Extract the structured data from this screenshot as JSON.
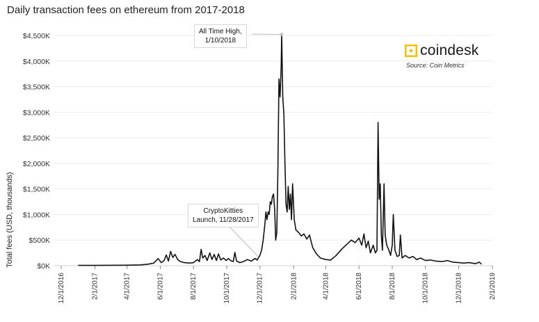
{
  "chart_data": {
    "type": "line",
    "title": "Daily transaction fees on ethereum from 2017-2018",
    "xlabel": "",
    "ylabel": "Total fees (USD, thousands)",
    "ylim": [
      0,
      4500
    ],
    "xlim": [
      "2016-12-01",
      "2019-02-01"
    ],
    "grid": "horizontal",
    "yticks": [
      0,
      500,
      1000,
      1500,
      2000,
      2500,
      3000,
      3500,
      4000,
      4500
    ],
    "ytick_labels": [
      "$0K",
      "$500K",
      "$1,000K",
      "$1,500K",
      "$2,000K",
      "$2,500K",
      "$3,000K",
      "$3,500K",
      "$4,000K",
      "$4,500K"
    ],
    "xtick_labels": [
      "12/1/2016",
      "2/1/2017",
      "4/1/2017",
      "6/1/2017",
      "8/1/2017",
      "10/1/2017",
      "12/1/2017",
      "2/1/2018",
      "4/1/2018",
      "6/1/2018",
      "8/1/2018",
      "10/1/2018",
      "12/1/2018",
      "2/1/2019"
    ],
    "xtick_dates": [
      "2016-12-01",
      "2017-02-01",
      "2017-04-01",
      "2017-06-01",
      "2017-08-01",
      "2017-10-01",
      "2017-12-01",
      "2018-02-01",
      "2018-04-01",
      "2018-06-01",
      "2018-08-01",
      "2018-10-01",
      "2018-12-01",
      "2019-02-01"
    ],
    "series": [
      {
        "color": "#111111",
        "points": [
          [
            "2017-01-01",
            5
          ],
          [
            "2017-02-01",
            5
          ],
          [
            "2017-03-01",
            8
          ],
          [
            "2017-04-01",
            10
          ],
          [
            "2017-04-25",
            15
          ],
          [
            "2017-05-10",
            30
          ],
          [
            "2017-05-20",
            50
          ],
          [
            "2017-05-28",
            140
          ],
          [
            "2017-06-03",
            60
          ],
          [
            "2017-06-08",
            100
          ],
          [
            "2017-06-12",
            210
          ],
          [
            "2017-06-16",
            90
          ],
          [
            "2017-06-20",
            280
          ],
          [
            "2017-06-24",
            160
          ],
          [
            "2017-06-28",
            220
          ],
          [
            "2017-07-03",
            120
          ],
          [
            "2017-07-08",
            80
          ],
          [
            "2017-07-15",
            60
          ],
          [
            "2017-07-25",
            50
          ],
          [
            "2017-08-01",
            60
          ],
          [
            "2017-08-08",
            120
          ],
          [
            "2017-08-12",
            80
          ],
          [
            "2017-08-15",
            320
          ],
          [
            "2017-08-18",
            150
          ],
          [
            "2017-08-22",
            200
          ],
          [
            "2017-08-26",
            100
          ],
          [
            "2017-08-31",
            250
          ],
          [
            "2017-09-04",
            120
          ],
          [
            "2017-09-08",
            220
          ],
          [
            "2017-09-12",
            100
          ],
          [
            "2017-09-16",
            230
          ],
          [
            "2017-09-20",
            110
          ],
          [
            "2017-09-25",
            150
          ],
          [
            "2017-09-30",
            100
          ],
          [
            "2017-10-04",
            140
          ],
          [
            "2017-10-08",
            100
          ],
          [
            "2017-10-13",
            80
          ],
          [
            "2017-10-16",
            260
          ],
          [
            "2017-10-19",
            90
          ],
          [
            "2017-10-25",
            60
          ],
          [
            "2017-11-01",
            80
          ],
          [
            "2017-11-08",
            120
          ],
          [
            "2017-11-15",
            90
          ],
          [
            "2017-11-22",
            140
          ],
          [
            "2017-11-26",
            110
          ],
          [
            "2017-11-28",
            150
          ],
          [
            "2017-12-01",
            200
          ],
          [
            "2017-12-04",
            300
          ],
          [
            "2017-12-07",
            500
          ],
          [
            "2017-12-10",
            800
          ],
          [
            "2017-12-12",
            1050
          ],
          [
            "2017-12-14",
            900
          ],
          [
            "2017-12-16",
            1050
          ],
          [
            "2017-12-18",
            1000
          ],
          [
            "2017-12-20",
            1250
          ],
          [
            "2017-12-22",
            1200
          ],
          [
            "2017-12-24",
            1350
          ],
          [
            "2017-12-26",
            1400
          ],
          [
            "2017-12-28",
            1100
          ],
          [
            "2017-12-30",
            500
          ],
          [
            "2018-01-01",
            650
          ],
          [
            "2018-01-03",
            1900
          ],
          [
            "2018-01-05",
            3650
          ],
          [
            "2018-01-07",
            3300
          ],
          [
            "2018-01-09",
            3900
          ],
          [
            "2018-01-10",
            4520
          ],
          [
            "2018-01-12",
            3300
          ],
          [
            "2018-01-14",
            2950
          ],
          [
            "2018-01-16",
            2000
          ],
          [
            "2018-01-18",
            1200
          ],
          [
            "2018-01-20",
            1050
          ],
          [
            "2018-01-22",
            1550
          ],
          [
            "2018-01-24",
            1100
          ],
          [
            "2018-01-26",
            1400
          ],
          [
            "2018-01-28",
            900
          ],
          [
            "2018-01-30",
            1600
          ],
          [
            "2018-02-02",
            900
          ],
          [
            "2018-02-05",
            700
          ],
          [
            "2018-02-10",
            650
          ],
          [
            "2018-02-15",
            580
          ],
          [
            "2018-02-20",
            620
          ],
          [
            "2018-02-25",
            520
          ],
          [
            "2018-03-02",
            600
          ],
          [
            "2018-03-08",
            350
          ],
          [
            "2018-03-15",
            230
          ],
          [
            "2018-03-22",
            150
          ],
          [
            "2018-04-01",
            120
          ],
          [
            "2018-04-10",
            110
          ],
          [
            "2018-04-20",
            200
          ],
          [
            "2018-05-01",
            330
          ],
          [
            "2018-05-10",
            420
          ],
          [
            "2018-05-18",
            500
          ],
          [
            "2018-05-25",
            450
          ],
          [
            "2018-06-01",
            540
          ],
          [
            "2018-06-06",
            400
          ],
          [
            "2018-06-10",
            620
          ],
          [
            "2018-06-14",
            350
          ],
          [
            "2018-06-18",
            480
          ],
          [
            "2018-06-22",
            250
          ],
          [
            "2018-06-27",
            400
          ],
          [
            "2018-07-01",
            250
          ],
          [
            "2018-07-04",
            300
          ],
          [
            "2018-07-06",
            2800
          ],
          [
            "2018-07-08",
            1300
          ],
          [
            "2018-07-10",
            1600
          ],
          [
            "2018-07-12",
            600
          ],
          [
            "2018-07-14",
            300
          ],
          [
            "2018-07-17",
            1600
          ],
          [
            "2018-07-19",
            600
          ],
          [
            "2018-07-22",
            400
          ],
          [
            "2018-07-26",
            300
          ],
          [
            "2018-07-29",
            200
          ],
          [
            "2018-08-01",
            400
          ],
          [
            "2018-08-03",
            1000
          ],
          [
            "2018-08-06",
            300
          ],
          [
            "2018-08-10",
            180
          ],
          [
            "2018-08-14",
            200
          ],
          [
            "2018-08-16",
            600
          ],
          [
            "2018-08-19",
            150
          ],
          [
            "2018-08-25",
            200
          ],
          [
            "2018-09-01",
            150
          ],
          [
            "2018-09-08",
            180
          ],
          [
            "2018-09-15",
            120
          ],
          [
            "2018-09-22",
            150
          ],
          [
            "2018-10-01",
            100
          ],
          [
            "2018-10-10",
            110
          ],
          [
            "2018-10-20",
            90
          ],
          [
            "2018-11-01",
            80
          ],
          [
            "2018-11-10",
            100
          ],
          [
            "2018-11-20",
            70
          ],
          [
            "2018-12-01",
            60
          ],
          [
            "2018-12-10",
            50
          ],
          [
            "2018-12-20",
            60
          ],
          [
            "2019-01-01",
            40
          ],
          [
            "2019-01-08",
            70
          ],
          [
            "2019-01-12",
            30
          ]
        ]
      }
    ],
    "annotations": [
      {
        "text_line1": "All Time High,",
        "text_line2": "1/10/2018",
        "date": "2018-01-10",
        "value": 4520
      },
      {
        "text_line1": "CryptoKitties",
        "text_line2": "Launch, 11/28/2017",
        "date": "2017-11-28",
        "value": 150
      }
    ]
  },
  "brand": {
    "name": "coindesk",
    "source": "Source: Coin Metrics",
    "logo_color": "#f2c200",
    "icon": "coindesk-logo-icon"
  }
}
